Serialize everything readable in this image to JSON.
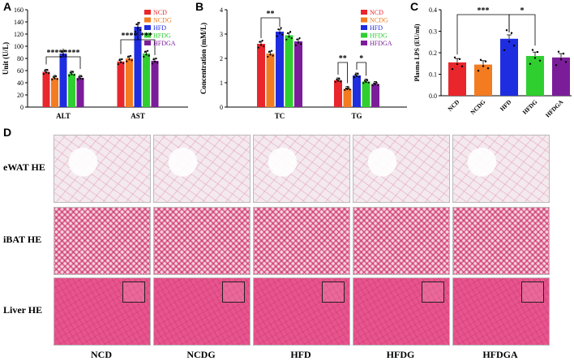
{
  "panel_letters": {
    "a": "A",
    "b": "B",
    "c": "C",
    "d": "D"
  },
  "colors": {
    "NCD": "#e8262b",
    "NCDG": "#f37b20",
    "HFD": "#1f2de0",
    "HFDG": "#2fcf2f",
    "HFDGA": "#7b1d99"
  },
  "chart_data": [
    {
      "type": "bar",
      "panel": "A",
      "categories": [
        "ALT",
        "AST"
      ],
      "ylabel": "Unit (U/L)",
      "ylim": [
        0,
        160
      ],
      "yticks": [
        "0",
        "20",
        "40",
        "60",
        "80",
        "100",
        "120",
        "140",
        "160"
      ],
      "legend": [
        "NCD",
        "NCDG",
        "HFD",
        "HFDG",
        "HFDGA"
      ],
      "series": [
        {
          "name": "NCD",
          "values": [
            58,
            75
          ]
        },
        {
          "name": "NCDG",
          "values": [
            48,
            80
          ]
        },
        {
          "name": "HFD",
          "values": [
            88,
            132
          ]
        },
        {
          "name": "HFDG",
          "values": [
            55,
            88
          ]
        },
        {
          "name": "HFDGA",
          "values": [
            48,
            76
          ]
        }
      ],
      "significance": [
        {
          "label": "****"
        },
        {
          "label": "****"
        },
        {
          "label": "****"
        },
        {
          "label": "***"
        }
      ]
    },
    {
      "type": "bar",
      "panel": "B",
      "categories": [
        "TC",
        "TG"
      ],
      "ylabel": "Concentration (mM/L)",
      "ylim": [
        0,
        4
      ],
      "yticks": [
        "0",
        "1",
        "2",
        "3",
        "4"
      ],
      "legend": [
        "NCD",
        "NCDG",
        "HFD",
        "HFDG",
        "HFDGA"
      ],
      "series": [
        {
          "name": "NCD",
          "values": [
            2.6,
            1.1
          ]
        },
        {
          "name": "NCDG",
          "values": [
            2.2,
            0.75
          ]
        },
        {
          "name": "HFD",
          "values": [
            3.1,
            1.3
          ]
        },
        {
          "name": "HFDG",
          "values": [
            2.95,
            1.05
          ]
        },
        {
          "name": "HFDGA",
          "values": [
            2.7,
            0.95
          ]
        }
      ],
      "significance": [
        {
          "label": "**"
        },
        {
          "label": "**"
        },
        {
          "label": "*"
        }
      ]
    },
    {
      "type": "bar",
      "panel": "C",
      "categories": [
        "NCD",
        "NCDG",
        "HFD",
        "HFDG",
        "HFDGA"
      ],
      "ylabel": "Plasma LPS (EU/ml)",
      "ylim": [
        0,
        0.4
      ],
      "yticks": [
        "0.0",
        "0.1",
        "0.2",
        "0.3",
        "0.4"
      ],
      "values": [
        0.155,
        0.145,
        0.265,
        0.185,
        0.178
      ],
      "significance": [
        {
          "label": "***"
        },
        {
          "label": "*"
        }
      ]
    }
  ],
  "histology": {
    "rows": [
      "eWAT HE",
      "iBAT HE",
      "Liver HE"
    ],
    "columns": [
      "NCD",
      "NCDG",
      "HFD",
      "HFDG",
      "HFDGA"
    ]
  }
}
